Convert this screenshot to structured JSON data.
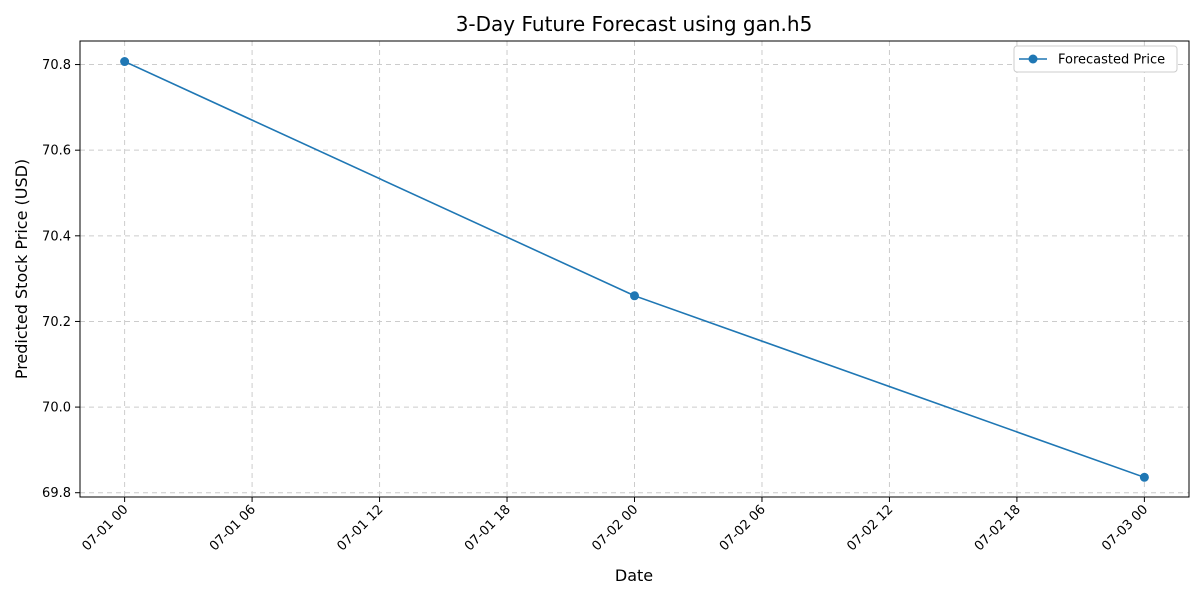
{
  "chart_data": {
    "type": "line",
    "title": "3-Day Future Forecast using gan.h5",
    "xlabel": "Date",
    "ylabel": "Predicted Stock Price (USD)",
    "x": [
      "07-01 00",
      "07-02 00",
      "07-03 00"
    ],
    "x_hours": [
      0,
      24,
      48
    ],
    "series": [
      {
        "name": "Forecasted Price",
        "values": [
          70.807,
          70.26,
          69.836
        ],
        "color": "#1f77b4",
        "marker": "circle"
      }
    ],
    "x_ticks": [
      "07-01 00",
      "07-01 06",
      "07-01 12",
      "07-01 18",
      "07-02 00",
      "07-02 06",
      "07-02 12",
      "07-02 18",
      "07-03 00"
    ],
    "y_ticks": [
      "69.8",
      "70.0",
      "70.2",
      "70.4",
      "70.6",
      "70.8"
    ],
    "ylim": [
      69.79,
      70.855
    ],
    "grid": true,
    "legend_position": "top-right"
  }
}
